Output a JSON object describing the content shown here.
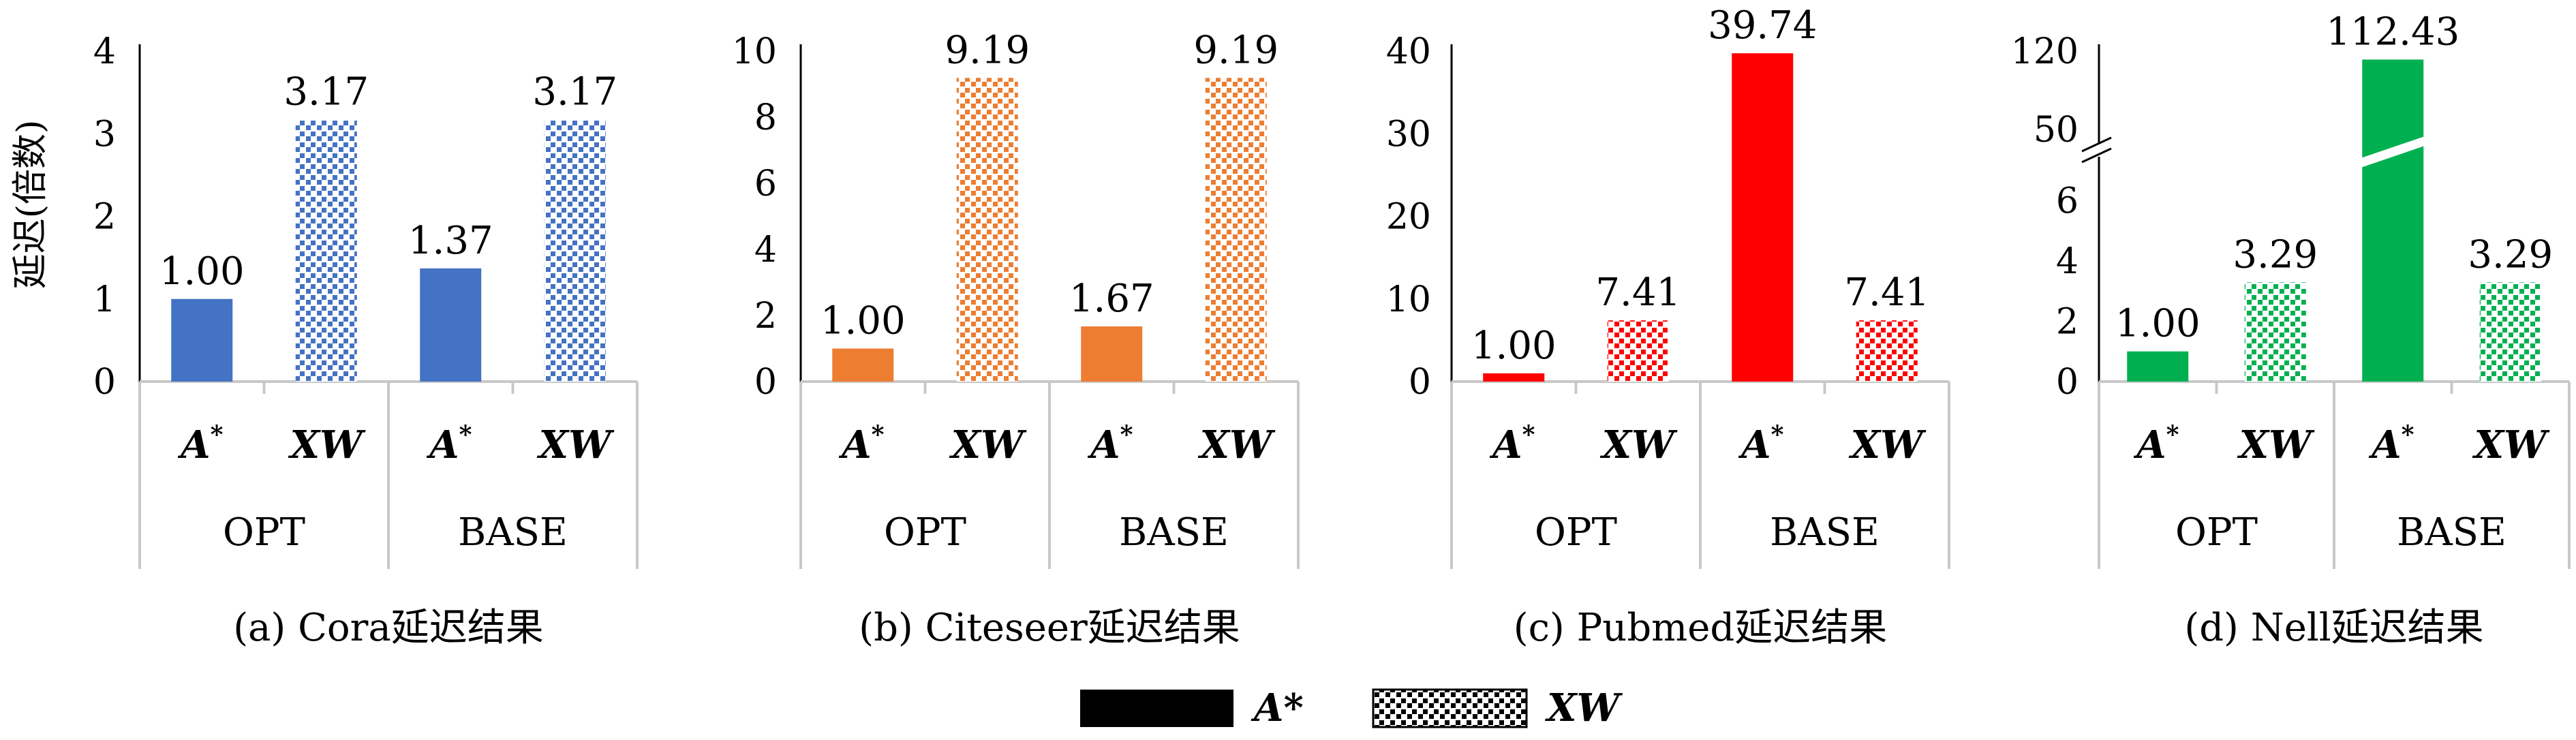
{
  "ylabel": "延迟(倍数)",
  "chart_data": [
    {
      "type": "bar",
      "caption": "(a) Cora延迟结果",
      "groups": [
        "OPT",
        "BASE"
      ],
      "series_labels": [
        "A*",
        "XW"
      ],
      "values": [
        [
          1.0,
          3.17
        ],
        [
          1.37,
          3.17
        ]
      ],
      "value_labels": [
        [
          "1.00",
          "3.17"
        ],
        [
          "1.37",
          "3.17"
        ]
      ],
      "ylim": [
        0,
        4
      ],
      "yticks": [
        "0",
        "1",
        "2",
        "3",
        "4"
      ],
      "color": "#4472c4"
    },
    {
      "type": "bar",
      "caption": "(b) Citeseer延迟结果",
      "groups": [
        "OPT",
        "BASE"
      ],
      "series_labels": [
        "A*",
        "XW"
      ],
      "values": [
        [
          1.0,
          9.19
        ],
        [
          1.67,
          9.19
        ]
      ],
      "value_labels": [
        [
          "1.00",
          "9.19"
        ],
        [
          "1.67",
          "9.19"
        ]
      ],
      "ylim": [
        0,
        10
      ],
      "yticks": [
        "0",
        "2",
        "4",
        "6",
        "8",
        "10"
      ],
      "color": "#ed7d31"
    },
    {
      "type": "bar",
      "caption": "(c) Pubmed延迟结果",
      "groups": [
        "OPT",
        "BASE"
      ],
      "series_labels": [
        "A*",
        "XW"
      ],
      "values": [
        [
          1.0,
          7.41
        ],
        [
          39.74,
          7.41
        ]
      ],
      "value_labels": [
        [
          "1.00",
          "7.41"
        ],
        [
          "39.74",
          "7.41"
        ]
      ],
      "ylim": [
        0,
        40
      ],
      "yticks": [
        "0",
        "10",
        "20",
        "30",
        "40"
      ],
      "color": "#ff0000"
    },
    {
      "type": "bar",
      "caption": "(d) Nell延迟结果",
      "groups": [
        "OPT",
        "BASE"
      ],
      "series_labels": [
        "A*",
        "XW"
      ],
      "values": [
        [
          1.0,
          3.29
        ],
        [
          112.43,
          3.29
        ]
      ],
      "value_labels": [
        [
          "1.00",
          "3.29"
        ],
        [
          "112.43",
          "3.29"
        ]
      ],
      "ylim": [
        0,
        120
      ],
      "yticks": [
        "0",
        "2",
        "4",
        "6",
        "50",
        "120"
      ],
      "axis_break": [
        7,
        50
      ],
      "color": "#00b050"
    }
  ],
  "legend": {
    "placement": "bottom-center",
    "items": [
      {
        "label": "A*",
        "pattern": "solid"
      },
      {
        "label": "XW",
        "pattern": "checkered"
      }
    ]
  }
}
